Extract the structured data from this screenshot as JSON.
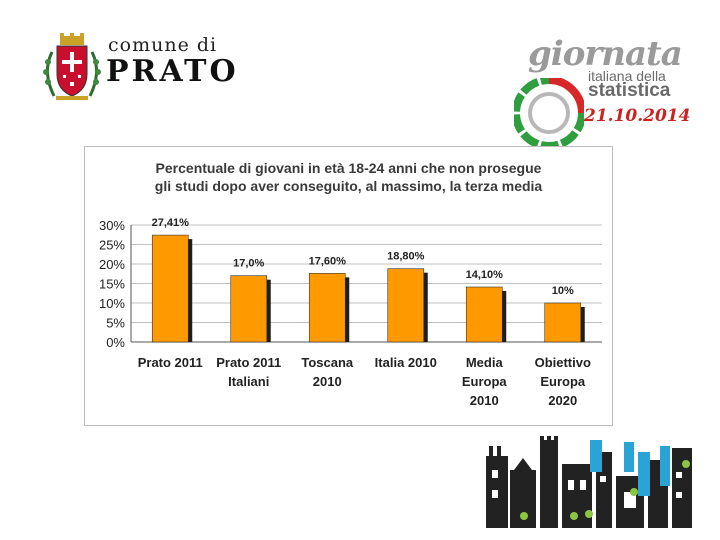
{
  "logo_prato": {
    "line1": "comune di",
    "line2": "PRATO"
  },
  "logo_gds": {
    "word1": "giornata",
    "word2": "italiana della",
    "word3": "statistica",
    "date": "21.10.2014"
  },
  "chart_data": {
    "type": "bar",
    "title_line1": "Percentuale di giovani in età 18-24 anni che non prosegue",
    "title_line2": "gli studi dopo aver conseguito, al massimo, la terza media",
    "categories": [
      [
        "Prato 2011"
      ],
      [
        "Prato 2011",
        "Italiani"
      ],
      [
        "Toscana",
        "2010"
      ],
      [
        "Italia 2010"
      ],
      [
        "Media",
        "Europa",
        "2010"
      ],
      [
        "Obiettivo",
        "Europa",
        "2020"
      ]
    ],
    "values": [
      27.41,
      17.0,
      17.6,
      18.8,
      14.1,
      10.0
    ],
    "data_labels": [
      "27,41%",
      "17,0%",
      "17,60%",
      "18,80%",
      "14,10%",
      "10%"
    ],
    "yticks": [
      "0%",
      "5%",
      "10%",
      "15%",
      "20%",
      "25%",
      "30%"
    ],
    "ylim": [
      0,
      30
    ],
    "grid": true,
    "legend": "none",
    "bar_color": "#ff9900"
  }
}
